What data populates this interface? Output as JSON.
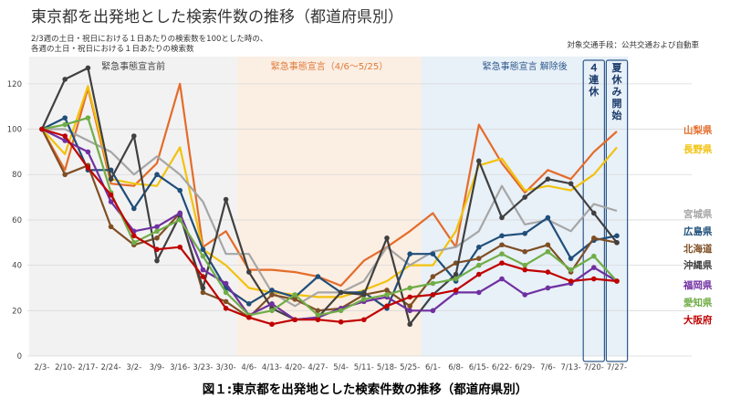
{
  "chart_data": {
    "type": "line",
    "title": "東京都を出発地とした検索件数の推移（都道府県別）",
    "subtitle_lines": [
      "2/3週の土日・祝日における１日あたりの検索数を100とした時の、",
      "各週の土日・祝日における１日あたりの検索数"
    ],
    "note_right": "対象交通手段：公共交通および自動車",
    "caption": "図１:東京都を出発地とした検索件数の推移（都道府県別）",
    "x": [
      "2/3-",
      "2/10-",
      "2/17-",
      "2/24-",
      "3/2-",
      "3/9-",
      "3/16-",
      "3/23-",
      "3/30-",
      "4/6-",
      "4/13-",
      "4/20-",
      "4/27-",
      "5/4-",
      "5/11-",
      "5/18-",
      "5/25-",
      "6/1-",
      "6/8-",
      "6/15-",
      "6/22-",
      "6/29-",
      "7/6-",
      "7/13-",
      "7/20-",
      "7/27-"
    ],
    "ylim": [
      0,
      130
    ],
    "yticks": [
      0,
      20,
      40,
      60,
      80,
      100,
      120
    ],
    "grid": true,
    "periods": [
      {
        "label": "緊急事態宣言前",
        "start": 0,
        "end": 8.5,
        "color": "#f2f2f2",
        "text_color": "#444444"
      },
      {
        "label": "緊急事態宣言（4/6～5/25）",
        "start": 8.5,
        "end": 16.5,
        "color": "#fbeee3",
        "text_color": "#e07b39"
      },
      {
        "label": "緊急事態宣言 解除後",
        "start": 16.5,
        "end": 25.5,
        "color": "#e8f0f8",
        "text_color": "#2e5a8c"
      }
    ],
    "boxes": [
      {
        "label": "４連休",
        "start": 23.5,
        "end": 24.5
      },
      {
        "label": "夏休み開始",
        "start": 24.5,
        "end": 25.5
      }
    ],
    "series": [
      {
        "name": "山梨県",
        "color": "#e46c2a",
        "marker": false,
        "values": [
          100,
          82,
          118,
          76,
          75,
          85,
          120,
          48,
          55,
          38,
          38,
          37,
          35,
          31,
          42,
          48,
          55,
          63,
          48,
          102,
          85,
          72,
          82,
          78,
          90,
          99
        ]
      },
      {
        "name": "長野県",
        "color": "#f2c20d",
        "marker": false,
        "values": [
          100,
          89,
          119,
          78,
          76,
          75,
          92,
          47,
          40,
          30,
          28,
          27,
          26,
          26,
          29,
          33,
          40,
          40,
          55,
          84,
          87,
          73,
          75,
          73,
          80,
          92
        ]
      },
      {
        "name": "宮城県",
        "color": "#a6a6a6",
        "marker": false,
        "values": [
          100,
          100,
          95,
          90,
          80,
          88,
          80,
          68,
          45,
          45,
          28,
          22,
          28,
          28,
          33,
          48,
          40,
          46,
          48,
          55,
          75,
          58,
          60,
          55,
          67,
          64
        ]
      },
      {
        "name": "広島県",
        "color": "#1f4e79",
        "marker": true,
        "values": [
          100,
          105,
          82,
          82,
          65,
          80,
          73,
          47,
          30,
          23,
          29,
          26,
          35,
          28,
          28,
          21,
          45,
          45,
          33,
          48,
          53,
          54,
          61,
          43,
          51,
          53
        ]
      },
      {
        "name": "北海道",
        "color": "#7f4f24",
        "marker": true,
        "values": [
          100,
          80,
          84,
          57,
          49,
          52,
          63,
          28,
          24,
          17,
          27,
          25,
          20,
          21,
          27,
          29,
          22,
          35,
          41,
          43,
          49,
          46,
          49,
          37,
          52,
          50
        ]
      },
      {
        "name": "沖縄県",
        "color": "#404040",
        "marker": true,
        "values": [
          100,
          122,
          127,
          78,
          97,
          42,
          62,
          30,
          69,
          37,
          21,
          16,
          17,
          28,
          27,
          52,
          14,
          27,
          36,
          86,
          61,
          70,
          78,
          76,
          63,
          50
        ]
      },
      {
        "name": "福岡県",
        "color": "#7030a0",
        "marker": true,
        "values": [
          100,
          95,
          90,
          68,
          55,
          57,
          63,
          38,
          32,
          18,
          23,
          16,
          17,
          21,
          24,
          26,
          20,
          20,
          28,
          28,
          34,
          27,
          30,
          32,
          39,
          33
        ]
      },
      {
        "name": "愛知県",
        "color": "#70ad47",
        "marker": true,
        "values": [
          100,
          102,
          105,
          72,
          50,
          55,
          60,
          44,
          28,
          18,
          20,
          27,
          18,
          20,
          25,
          27,
          30,
          32,
          34,
          40,
          45,
          40,
          46,
          38,
          44,
          33
        ]
      },
      {
        "name": "大阪府",
        "color": "#c00000",
        "marker": true,
        "values": [
          100,
          97,
          83,
          71,
          53,
          47,
          48,
          35,
          21,
          17,
          14,
          16,
          16,
          15,
          16,
          22,
          26,
          27,
          29,
          36,
          41,
          38,
          37,
          33,
          34,
          33
        ]
      }
    ]
  }
}
